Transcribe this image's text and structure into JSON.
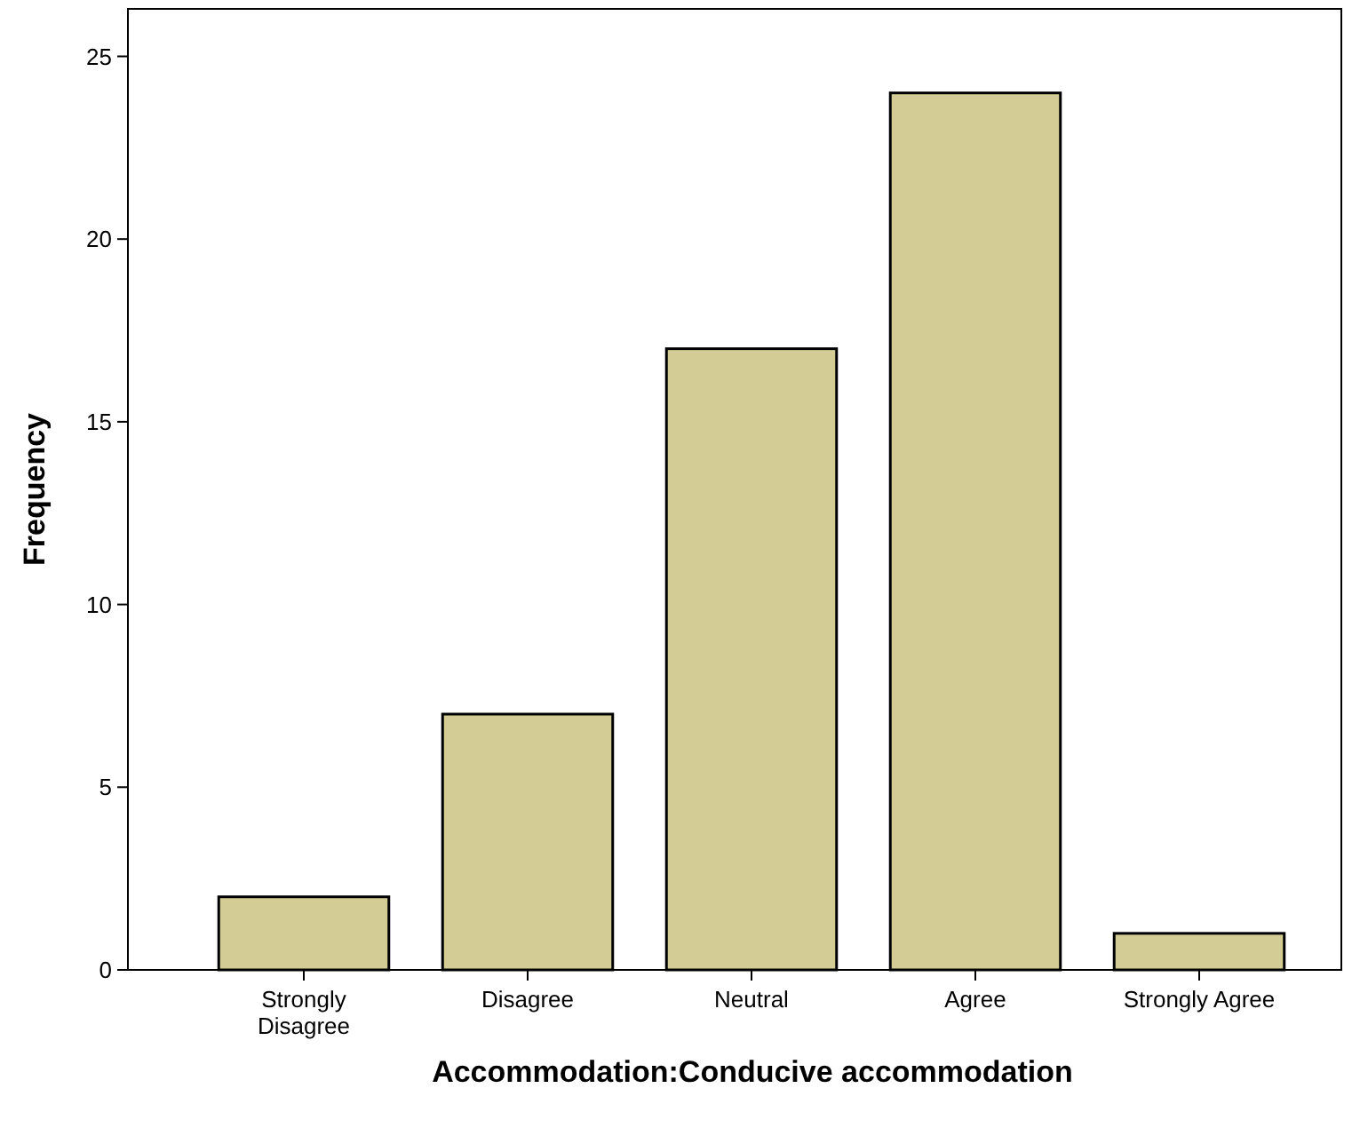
{
  "chart_data": {
    "type": "bar",
    "xlabel": "Accommodation:Conducive accommodation",
    "ylabel": "Frequency",
    "categories": [
      "Strongly Disagree",
      "Disagree",
      "Neutral",
      "Agree",
      "Strongly Agree"
    ],
    "values": [
      2,
      7,
      17,
      24,
      1
    ],
    "color": "#d3cd95",
    "ylim": [
      0,
      26.3
    ],
    "yticks": [
      0,
      5,
      10,
      15,
      20,
      25
    ],
    "grid": false
  }
}
